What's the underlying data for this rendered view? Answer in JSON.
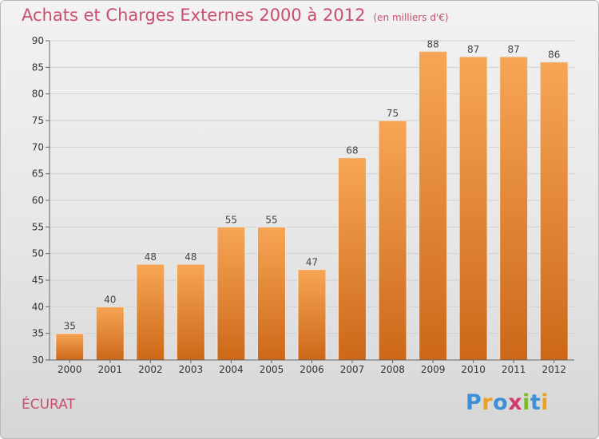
{
  "header": {
    "title": "Achats et Charges Externes 2000 à 2012",
    "unit": "(en milliers d'€)"
  },
  "footer": {
    "commune": "ÉCURAT",
    "logo": "Proxiti",
    "logo_letters": [
      {
        "ch": "P",
        "color": "#3d8fd6"
      },
      {
        "ch": "r",
        "color": "#f0a020"
      },
      {
        "ch": "o",
        "color": "#3d8fd6"
      },
      {
        "ch": "x",
        "color": "#d23a6a"
      },
      {
        "ch": "i",
        "color": "#7cbb2c"
      },
      {
        "ch": "t",
        "color": "#3d8fd6"
      },
      {
        "ch": "i",
        "color": "#f0a020"
      }
    ]
  },
  "colors": {
    "bar_top": "#f7a656",
    "bar_bottom": "#cc6818",
    "title": "#c8506e"
  },
  "chart_data": {
    "type": "bar",
    "categories": [
      "2000",
      "2001",
      "2002",
      "2003",
      "2004",
      "2005",
      "2006",
      "2007",
      "2008",
      "2009",
      "2010",
      "2011",
      "2012"
    ],
    "values": [
      35,
      40,
      48,
      48,
      55,
      55,
      47,
      68,
      75,
      88,
      87,
      87,
      86
    ],
    "ylim": [
      30,
      90
    ],
    "yticks": [
      30,
      35,
      40,
      45,
      50,
      55,
      60,
      65,
      70,
      75,
      80,
      85,
      90
    ],
    "grid": true
  }
}
